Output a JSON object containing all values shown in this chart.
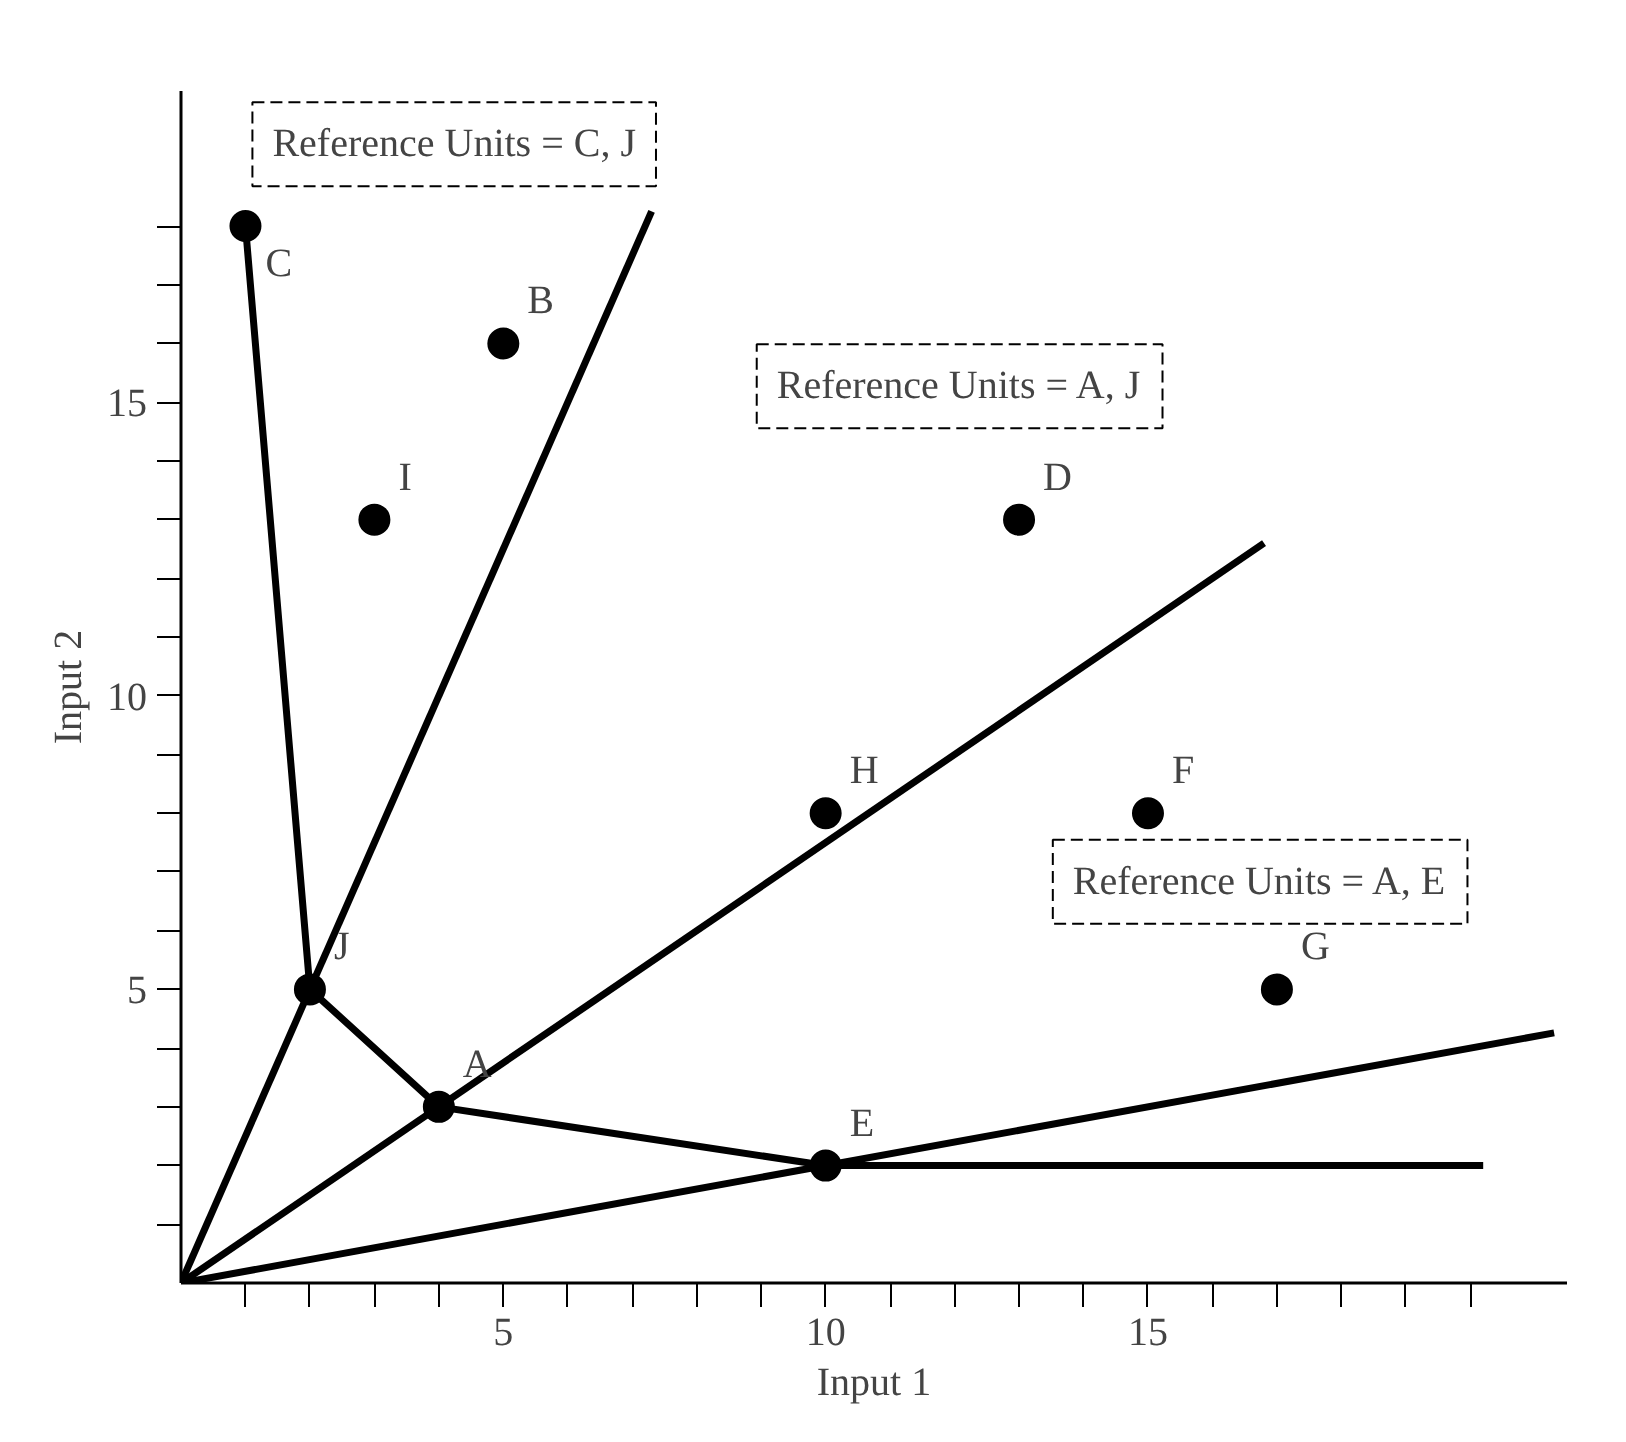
{
  "chart_data": {
    "type": "scatter",
    "xlabel": "Input 1",
    "ylabel": "Input 2",
    "xlim": [
      0,
      21.5
    ],
    "ylim": [
      0,
      20.3
    ],
    "xticks": [
      {
        "value": 1,
        "label": null
      },
      {
        "value": 2,
        "label": null
      },
      {
        "value": 3,
        "label": null
      },
      {
        "value": 4,
        "label": null
      },
      5,
      {
        "value": 6,
        "label": null
      },
      {
        "value": 7,
        "label": null
      },
      {
        "value": 8,
        "label": null
      },
      {
        "value": 9,
        "label": null
      },
      10,
      {
        "value": 11,
        "label": null
      },
      {
        "value": 12,
        "label": null
      },
      {
        "value": 13,
        "label": null
      },
      {
        "value": 14,
        "label": null
      },
      15,
      {
        "value": 16,
        "label": null
      },
      {
        "value": 17,
        "label": null
      },
      {
        "value": 18,
        "label": null
      },
      {
        "value": 19,
        "label": null
      },
      {
        "value": 20,
        "label": null
      }
    ],
    "yticks": [
      {
        "value": 1,
        "label": null
      },
      {
        "value": 2,
        "label": null
      },
      {
        "value": 3,
        "label": null
      },
      {
        "value": 4,
        "label": null
      },
      5,
      {
        "value": 6,
        "label": null
      },
      {
        "value": 7,
        "label": null
      },
      {
        "value": 8,
        "label": null
      },
      {
        "value": 9,
        "label": null
      },
      10,
      {
        "value": 11,
        "label": null
      },
      {
        "value": 12,
        "label": null
      },
      {
        "value": 13,
        "label": null
      },
      {
        "value": 14,
        "label": null
      },
      15,
      {
        "value": 16,
        "label": null
      },
      {
        "value": 17,
        "label": null
      },
      {
        "value": 18,
        "label": null
      }
    ],
    "grid": false,
    "series": [
      {
        "marker": "circle",
        "color": "#000000",
        "x": [
          4,
          5,
          1,
          13,
          10,
          15,
          17,
          10,
          3,
          2
        ],
        "values": [
          3,
          16,
          18,
          13,
          2,
          8,
          5,
          8,
          13,
          5
        ]
      },
      {
        "type": "line",
        "marker": "none",
        "color": "#000000",
        "x": [
          1,
          2,
          4,
          10,
          20.2
        ],
        "values": [
          18,
          5,
          3,
          2,
          2
        ]
      },
      {
        "type": "line",
        "marker": "none",
        "color": "#000000",
        "x": [
          0,
          7.3
        ],
        "values": [
          0,
          18.25
        ]
      },
      {
        "type": "line",
        "marker": "none",
        "color": "#000000",
        "x": [
          0,
          16.8
        ],
        "values": [
          0,
          12.6
        ]
      },
      {
        "type": "line",
        "marker": "none",
        "color": "#000000",
        "x": [
          0,
          21.3
        ],
        "values": [
          0,
          4.26
        ]
      }
    ],
    "annotations": [
      {
        "text": "A",
        "x": 4,
        "y": 3
      },
      {
        "text": "B",
        "x": 5,
        "y": 16
      },
      {
        "text": "C",
        "x": 1,
        "y": 18
      },
      {
        "text": "D",
        "x": 13,
        "y": 13
      },
      {
        "text": "E",
        "x": 10,
        "y": 2
      },
      {
        "text": "F",
        "x": 15,
        "y": 8
      },
      {
        "text": "G",
        "x": 17,
        "y": 5
      },
      {
        "text": "H",
        "x": 10,
        "y": 8
      },
      {
        "text": "I",
        "x": 3,
        "y": 13
      },
      {
        "text": "J",
        "x": 2,
        "y": 5
      },
      "Reference Units = C, J",
      "Reference Units = A, J",
      "Reference Units = A, E"
    ]
  }
}
